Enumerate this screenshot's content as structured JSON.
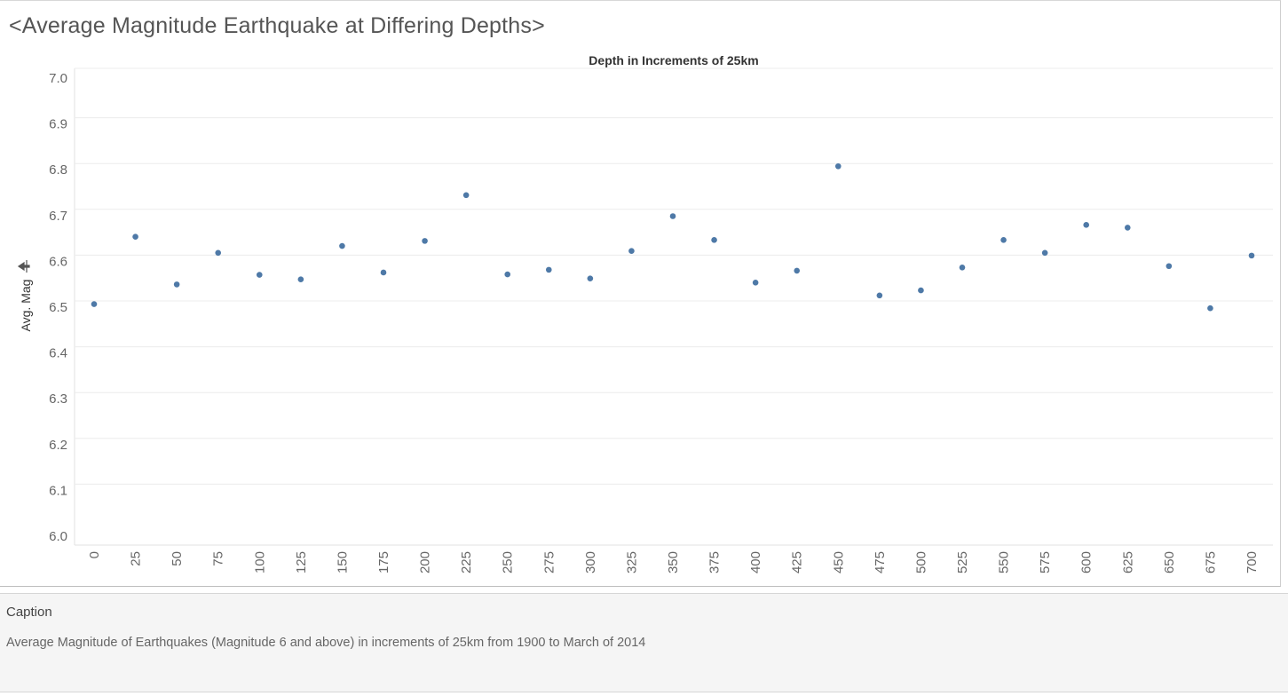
{
  "page": {
    "title": "<Average Magnitude Earthquake at Differing Depths>"
  },
  "caption": {
    "heading": "Caption",
    "text": "Average Magnitude of Earthquakes (Magnitude 6 and above) in increments of 25km from 1900 to March of 2014"
  },
  "chart_data": {
    "type": "scatter",
    "title": "Depth in Increments of 25km",
    "xlabel": "",
    "ylabel": "Avg. Mag",
    "ylabel_icon": "sort-descending-icon",
    "categories": [
      "0",
      "25",
      "50",
      "75",
      "100",
      "125",
      "150",
      "175",
      "200",
      "225",
      "250",
      "275",
      "300",
      "325",
      "350",
      "375",
      "400",
      "425",
      "450",
      "475",
      "500",
      "525",
      "550",
      "575",
      "600",
      "625",
      "650",
      "675",
      "700"
    ],
    "values": [
      6.495,
      6.642,
      6.538,
      6.607,
      6.559,
      6.549,
      6.622,
      6.564,
      6.633,
      6.733,
      6.56,
      6.57,
      6.551,
      6.611,
      6.687,
      6.635,
      6.542,
      6.568,
      6.796,
      6.514,
      6.525,
      6.575,
      6.635,
      6.607,
      6.668,
      6.662,
      6.578,
      6.486,
      6.601
    ],
    "ylim": [
      6.0,
      7.0
    ],
    "yticks": [
      "7.0",
      "6.9",
      "6.8",
      "6.7",
      "6.6",
      "6.5",
      "6.4",
      "6.3",
      "6.2",
      "6.1",
      "6.0"
    ],
    "grid": true,
    "point_color": "#4e79a7",
    "grid_color": "#ececec",
    "axis_text_color": "#666666"
  }
}
